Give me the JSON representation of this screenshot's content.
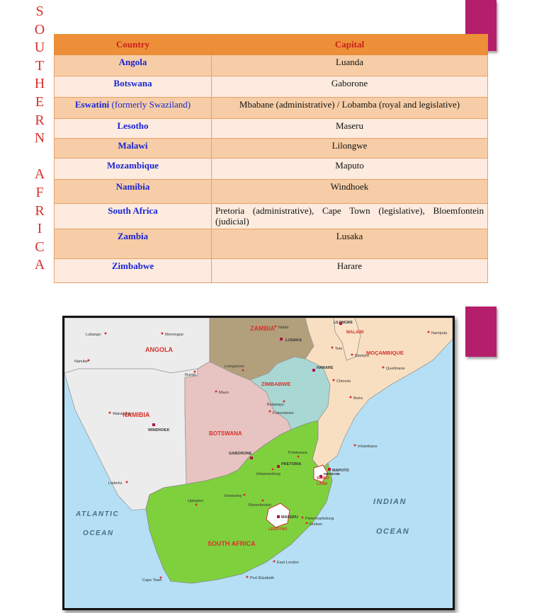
{
  "side_title": [
    "S",
    "O",
    "U",
    "T",
    "H",
    "E",
    "R",
    "N",
    "",
    "A",
    "F",
    "R",
    "I",
    "C",
    "A"
  ],
  "table": {
    "headers": {
      "country": "Country",
      "capital": "Capital"
    },
    "rows": [
      {
        "country": "Angola",
        "capital": "Luanda"
      },
      {
        "country": "Botswana",
        "capital": "Gaborone"
      },
      {
        "country": "Eswatini",
        "country_note": "(formerly Swaziland)",
        "capital": "Mbabane (administrative) / Lobamba (royal and legislative)"
      },
      {
        "country": "Lesotho",
        "capital": "Maseru"
      },
      {
        "country": "Malawi",
        "capital": "Lilongwe"
      },
      {
        "country": "Mozambique",
        "capital": "Maputo"
      },
      {
        "country": "Namibia",
        "capital": "Windhoek"
      },
      {
        "country": "South Africa",
        "capital": "Pretoria (administrative), Cape Town (legislative), Bloemfontein (judicial)"
      },
      {
        "country": "Zambia",
        "capital": "Lusaka"
      },
      {
        "country": "Zimbabwe",
        "capital": "Harare"
      }
    ]
  },
  "map": {
    "countries": {
      "zambia": "ZAMBIA",
      "angola": "ANGOLA",
      "malawi": "MALAWI",
      "mozambique": "MOÇAMBIQUE",
      "zimbabwe": "ZIMBABWE",
      "namibia": "NAMIBIA",
      "botswana": "BOTSWANA",
      "south_africa": "SOUTH AFRICA",
      "lesotho": "LESOTHO",
      "swaziland_1": "SWAZI",
      "swaziland_2": "LAND",
      "lilongwe": "LILONGWE"
    },
    "oceans": {
      "atlantic_1": "ATLANTIC",
      "atlantic_2": "OCEAN",
      "indian_1": "INDIAN",
      "indian_2": "OCEAN"
    },
    "cities": {
      "lusaka": "LUSAKA",
      "harare": "HARARE",
      "windhoek": "WINDHOEK",
      "gaborone": "GABORONE",
      "pretoria": "PRETORIA",
      "maputo": "MAPUTO",
      "maseru": "MASERU",
      "mbabane": "MBABANE",
      "luanda_region": "Lubango",
      "walvis": "Walvis Bay",
      "cape_town": "Cape Town",
      "durban": "Durban",
      "beira": "Beira",
      "bulawayo": "Bulawayo",
      "livingstone": "Livingstone",
      "port_elizabeth": "Port Elizabeth",
      "east_london": "East London",
      "kimberley": "Kimberley",
      "bloemfontein": "Bloemfontein",
      "maun": "Maun",
      "blantyre": "Blantyre",
      "nampula": "Nampula",
      "quelimane": "Quelimane",
      "inhambane": "Inhambane",
      "upington": "Upington",
      "luderitz": "Lüderitz",
      "ndola": "Ndola",
      "tete": "Tete",
      "francistown": "Francistown",
      "mwanza": "Mwanza",
      "polokwane": "Polokwane",
      "johannesburg": "Johannesburg",
      "pietermaritzburg": "Pietermaritzburg",
      "chimoio": "Chimoio",
      "menongue": "Menongue",
      "namibe": "Namibe",
      "rundu": "Rundu"
    },
    "colors": {
      "ocean": "#b5dff4",
      "angola": "#ececec",
      "namibia": "#ececec",
      "zambia": "#b2a07c",
      "botswana": "#e7c4c1",
      "zimbabwe": "#a9d8d4",
      "mozambique": "#f9dfc1",
      "malawi": "#fbe3c8",
      "south_africa": "#7ed13c",
      "lesotho": "#ffffff",
      "swaziland": "#ffffff",
      "label": "#d6322c"
    }
  }
}
